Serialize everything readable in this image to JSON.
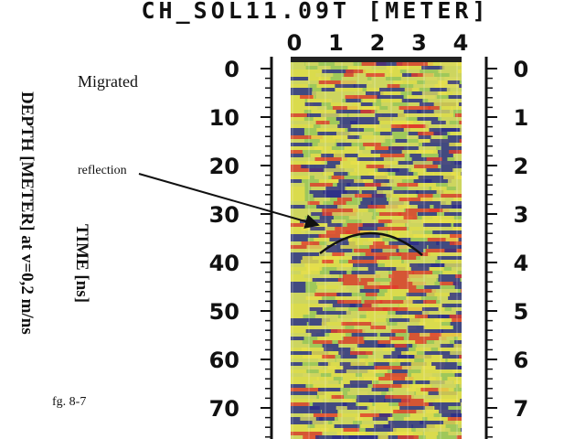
{
  "figure": {
    "title": "CH_SOL11.09T [METER]",
    "top_ticks": [
      "0",
      "1",
      "2",
      "3",
      "4"
    ],
    "left_ticks": [
      "0",
      "10",
      "20",
      "30",
      "40",
      "50",
      "60",
      "70"
    ],
    "right_ticks": [
      "0",
      "1",
      "2",
      "3",
      "4",
      "5",
      "6",
      "7"
    ],
    "left_outer_label": "DEPTH [METER] at v=0,2 m/ns",
    "left_inner_label": "TIME [ns]",
    "panel_label": "Migrated",
    "annotation": "reflection",
    "caption": "fg. 8-7"
  }
}
